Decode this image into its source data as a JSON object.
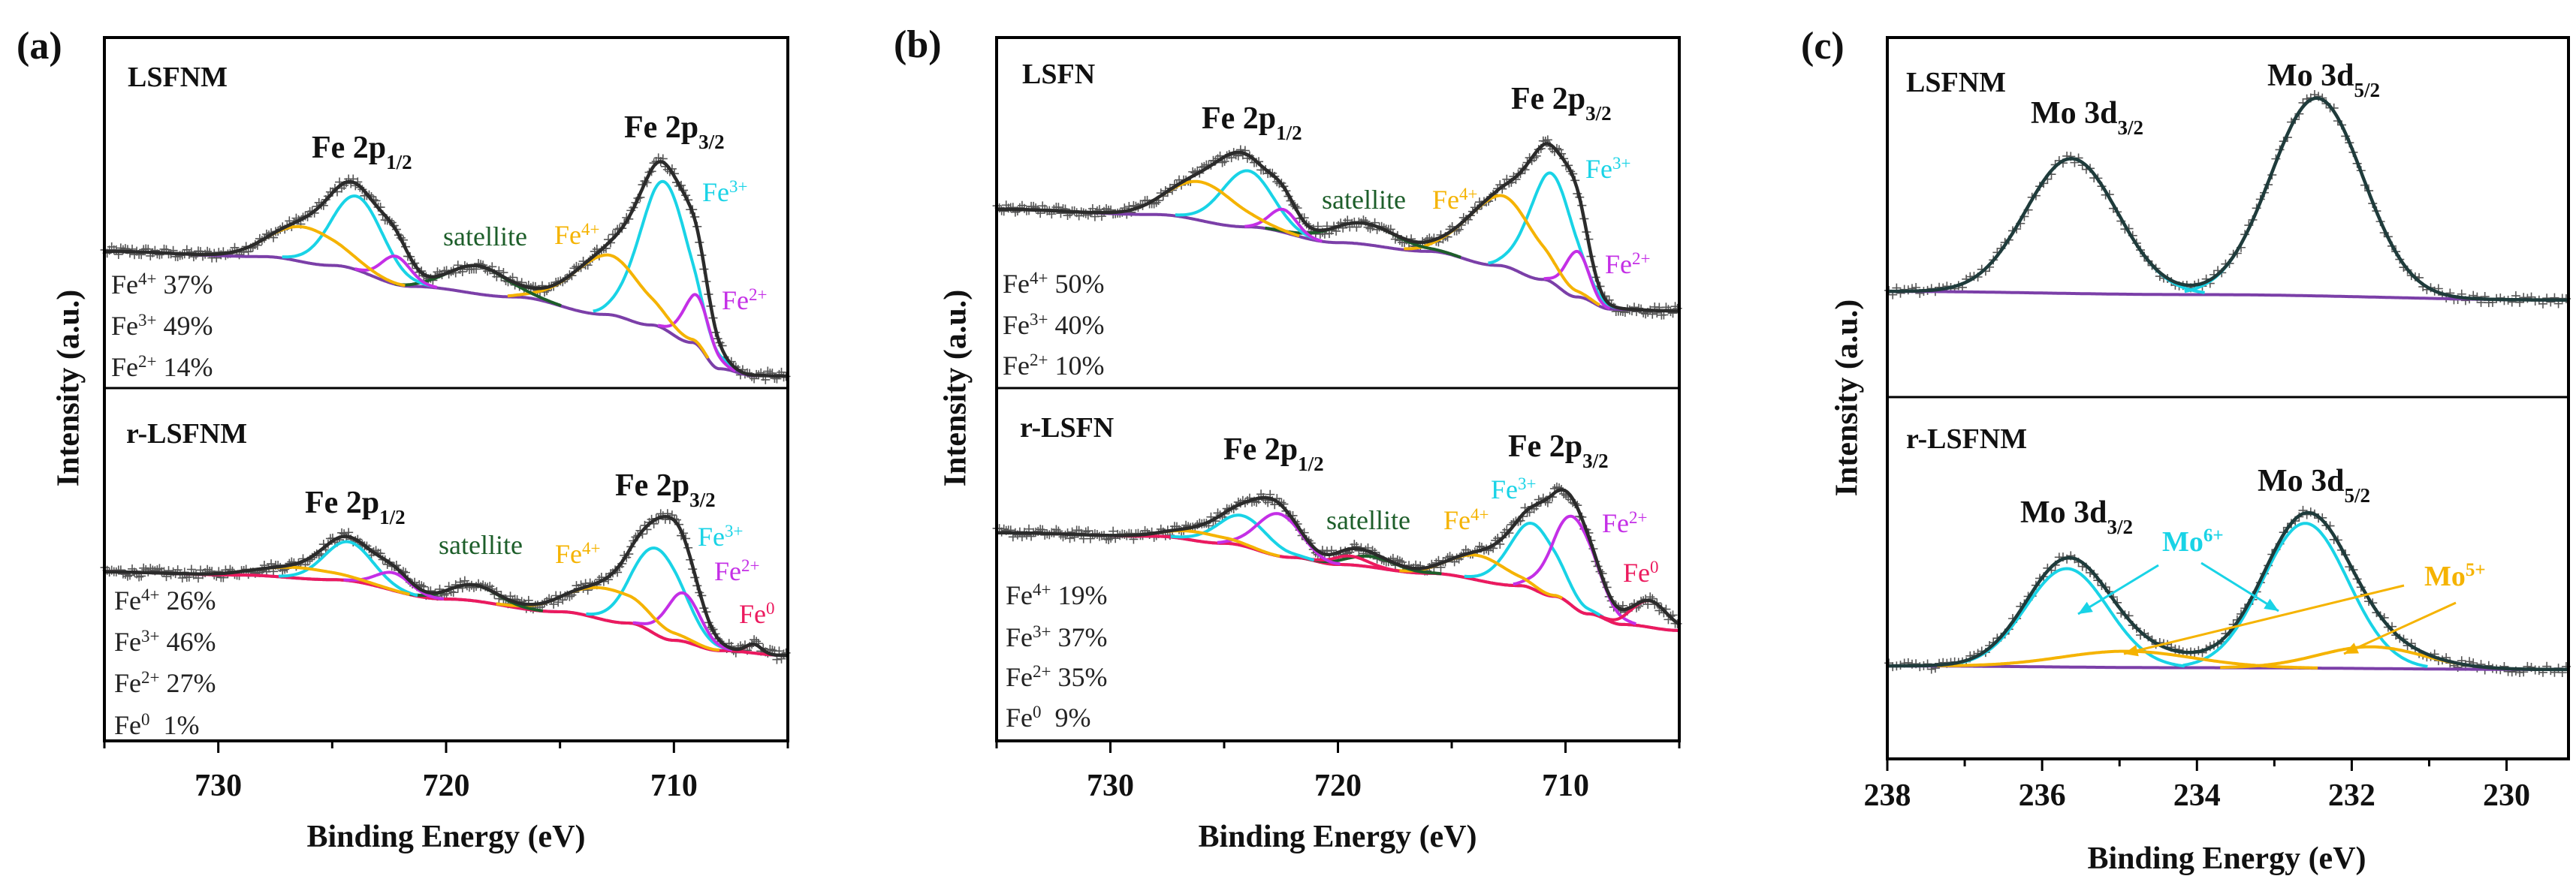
{
  "colors": {
    "fe3": "#19d3e6",
    "fe2": "#c42fe6",
    "fe4": "#f5b300",
    "sat": "#1d5e2a",
    "fe0": "#ec1a5e",
    "bg": "#7b3fa8",
    "envelope": "#2b2b2b",
    "data": "#555555",
    "mo_env": "#1f3b3b",
    "mo6": "#19d3e6",
    "mo5": "#f5b300"
  },
  "chart_data": [
    {
      "panel_label": "(a)",
      "type": "line",
      "xlabel": "Binding Energy (eV)",
      "ylabel": "Intensity (a.u.)",
      "xlim": [
        735,
        705
      ],
      "xticks": [
        730,
        720,
        710
      ],
      "minor_step": 5,
      "subplots": [
        {
          "sample": "LSFNM",
          "ylim": [
            0,
            100
          ],
          "background_color": "#7b3fa8",
          "background": [
            [
              735,
              39
            ],
            [
              728,
              37.5
            ],
            [
              725,
              35
            ],
            [
              721.5,
              29
            ],
            [
              717,
              26
            ],
            [
              713,
              21
            ],
            [
              711,
              18
            ],
            [
              709.2,
              13
            ],
            [
              708,
              5.5
            ],
            [
              706.5,
              3.6
            ],
            [
              705,
              3.4
            ]
          ],
          "components": [
            {
              "state": "Fe3+",
              "line": "2p3/2",
              "center": 710.4,
              "height": 42,
              "fwhm": 2.6,
              "color": "#19d3e6"
            },
            {
              "state": "Fe2+",
              "line": "2p3/2",
              "center": 709.0,
              "height": 14,
              "fwhm": 1.4,
              "color": "#c42fe6"
            },
            {
              "state": "Fe4+",
              "line": "2p3/2",
              "center": 712.9,
              "height": 17,
              "fwhm": 3.6,
              "color": "#f5b300"
            },
            {
              "state": "satellite",
              "line": "",
              "center": 718.6,
              "height": 8,
              "fwhm": 3.0,
              "color": "#1d5e2a"
            },
            {
              "state": "Fe3+",
              "line": "2p1/2",
              "center": 723.9,
              "height": 21,
              "fwhm": 2.7,
              "color": "#19d3e6"
            },
            {
              "state": "Fe2+",
              "line": "2p1/2",
              "center": 722.2,
              "height": 8,
              "fwhm": 1.5,
              "color": "#c42fe6"
            },
            {
              "state": "Fe4+",
              "line": "2p1/2",
              "center": 726.2,
              "height": 10,
              "fwhm": 3.6,
              "color": "#f5b300"
            }
          ],
          "peak_labels": [
            {
              "base": "Fe 2p",
              "sub": "1/2"
            },
            {
              "base": "Fe 2p",
              "sub": "3/2"
            }
          ],
          "species_labels": [
            {
              "base": "satellite",
              "sup": "",
              "color": "#1d5e2a"
            },
            {
              "base": "Fe",
              "sup": "4+",
              "color": "#f5b300"
            },
            {
              "base": "Fe",
              "sup": "3+",
              "color": "#19d3e6"
            },
            {
              "base": "Fe",
              "sup": "2+",
              "color": "#c42fe6"
            }
          ],
          "composition": [
            {
              "base": "Fe",
              "sup": "4+",
              "pct": "37%"
            },
            {
              "base": "Fe",
              "sup": "3+",
              "pct": "49%"
            },
            {
              "base": "Fe",
              "sup": "2+",
              "pct": "14%"
            }
          ]
        },
        {
          "sample": "r-LSFNM",
          "ylim": [
            0,
            100
          ],
          "background_color": "#ec1a5e",
          "background": [
            [
              735,
              47.9
            ],
            [
              729,
              47
            ],
            [
              725,
              45.7
            ],
            [
              720,
              40.2
            ],
            [
              715,
              36.6
            ],
            [
              712,
              33.4
            ],
            [
              710,
              28.5
            ],
            [
              708,
              25.6
            ],
            [
              705,
              24.2
            ]
          ],
          "components": [
            {
              "state": "Fe3+",
              "line": "2p3/2",
              "center": 710.7,
              "height": 24.5,
              "fwhm": 2.6,
              "color": "#19d3e6"
            },
            {
              "state": "Fe2+",
              "line": "2p3/2",
              "center": 709.6,
              "height": 13.7,
              "fwhm": 1.8,
              "color": "#c42fe6"
            },
            {
              "state": "Fe0",
              "line": "2p3/2",
              "center": 706.5,
              "height": 2.5,
              "fwhm": 0.8,
              "color": "#ec1a5e"
            },
            {
              "state": "Fe4+",
              "line": "2p3/2",
              "center": 712.9,
              "height": 9,
              "fwhm": 4.0,
              "color": "#f5b300"
            },
            {
              "state": "satellite",
              "line": "",
              "center": 718.8,
              "height": 4.5,
              "fwhm": 2.5,
              "color": "#1d5e2a"
            },
            {
              "state": "Fe3+",
              "line": "2p1/2",
              "center": 724.3,
              "height": 11,
              "fwhm": 2.5,
              "color": "#19d3e6"
            },
            {
              "state": "Fe2+",
              "line": "2p1/2",
              "center": 722.3,
              "height": 5,
              "fwhm": 1.8,
              "color": "#c42fe6"
            },
            {
              "state": "Fe4+",
              "line": "2p1/2",
              "center": 726.5,
              "height": 3,
              "fwhm": 4.0,
              "color": "#f5b300"
            }
          ],
          "peak_labels": [
            {
              "base": "Fe 2p",
              "sub": "1/2"
            },
            {
              "base": "Fe 2p",
              "sub": "3/2"
            }
          ],
          "species_labels": [
            {
              "base": "satellite",
              "sup": "",
              "color": "#1d5e2a"
            },
            {
              "base": "Fe",
              "sup": "4+",
              "color": "#f5b300"
            },
            {
              "base": "Fe",
              "sup": "3+",
              "color": "#19d3e6"
            },
            {
              "base": "Fe",
              "sup": "2+",
              "color": "#c42fe6"
            },
            {
              "base": "Fe",
              "sup": "0",
              "color": "#ec1a5e"
            }
          ],
          "composition": [
            {
              "base": "Fe",
              "sup": "4+",
              "pct": "26%"
            },
            {
              "base": "Fe",
              "sup": "3+",
              "pct": "46%"
            },
            {
              "base": "Fe",
              "sup": "2+",
              "pct": "27%"
            },
            {
              "base": "Fe",
              "sup": "0",
              "pct": "1%"
            }
          ]
        }
      ]
    },
    {
      "panel_label": "(b)",
      "type": "line",
      "xlabel": "Binding Energy (eV)",
      "ylabel": "Intensity (a.u.)",
      "xlim": [
        735,
        705
      ],
      "xticks": [
        730,
        720,
        710
      ],
      "minor_step": 5,
      "subplots": [
        {
          "sample": "LSFN",
          "ylim": [
            0,
            100
          ],
          "background_color": "#7b3fa8",
          "background": [
            [
              735,
              51
            ],
            [
              728,
              49.5
            ],
            [
              724,
              46
            ],
            [
              720,
              41.5
            ],
            [
              716,
              39
            ],
            [
              713,
              35
            ],
            [
              711,
              31
            ],
            [
              709.5,
              26
            ],
            [
              708,
              22.5
            ],
            [
              705,
              22
            ]
          ],
          "components": [
            {
              "state": "Fe3+",
              "line": "2p3/2",
              "center": 710.6,
              "height": 31,
              "fwhm": 2.3,
              "color": "#19d3e6"
            },
            {
              "state": "Fe2+",
              "line": "2p3/2",
              "center": 709.5,
              "height": 13,
              "fwhm": 1.2,
              "color": "#c42fe6"
            },
            {
              "state": "Fe4+",
              "line": "2p3/2",
              "center": 712.8,
              "height": 20,
              "fwhm": 3.5,
              "color": "#f5b300"
            },
            {
              "state": "satellite",
              "line": "",
              "center": 718.9,
              "height": 6,
              "fwhm": 3.5,
              "color": "#1d5e2a"
            },
            {
              "state": "Fe3+",
              "line": "2p1/2",
              "center": 724.0,
              "height": 16,
              "fwhm": 2.6,
              "color": "#19d3e6"
            },
            {
              "state": "Fe2+",
              "line": "2p1/2",
              "center": 722.4,
              "height": 6.5,
              "fwhm": 1.4,
              "color": "#c42fe6"
            },
            {
              "state": "Fe4+",
              "line": "2p1/2",
              "center": 726.0,
              "height": 11,
              "fwhm": 3.5,
              "color": "#f5b300"
            }
          ],
          "peak_labels": [
            {
              "base": "Fe 2p",
              "sub": "1/2"
            },
            {
              "base": "Fe 2p",
              "sub": "3/2"
            }
          ],
          "species_labels": [
            {
              "base": "satellite",
              "sup": "",
              "color": "#1d5e2a"
            },
            {
              "base": "Fe",
              "sup": "4+",
              "color": "#f5b300"
            },
            {
              "base": "Fe",
              "sup": "3+",
              "color": "#19d3e6"
            },
            {
              "base": "Fe",
              "sup": "2+",
              "color": "#c42fe6"
            }
          ],
          "composition": [
            {
              "base": "Fe",
              "sup": "4+",
              "pct": "50%"
            },
            {
              "base": "Fe",
              "sup": "3+",
              "pct": "40%"
            },
            {
              "base": "Fe",
              "sup": "2+",
              "pct": "10%"
            }
          ]
        },
        {
          "sample": "r-LSFN",
          "ylim": [
            0,
            100
          ],
          "background_color": "#ec1a5e",
          "background": [
            [
              735,
              59
            ],
            [
              728,
              58
            ],
            [
              725,
              56
            ],
            [
              722,
              52
            ],
            [
              720,
              50
            ],
            [
              716,
              47.5
            ],
            [
              712,
              44
            ],
            [
              710.5,
              41
            ],
            [
              709,
              36
            ],
            [
              707.5,
              33
            ],
            [
              705,
              31.3
            ]
          ],
          "components": [
            {
              "state": "Fe3+",
              "line": "2p3/2",
              "center": 711.4,
              "height": 18.5,
              "fwhm": 2.5,
              "color": "#19d3e6"
            },
            {
              "state": "Fe2+",
              "line": "2p3/2",
              "center": 709.6,
              "height": 25.5,
              "fwhm": 2.2,
              "color": "#c42fe6"
            },
            {
              "state": "Fe0",
              "line": "2p3/2",
              "center": 706.3,
              "height": 7.5,
              "fwhm": 1.8,
              "color": "#ec1a5e"
            },
            {
              "state": "Fe4+",
              "line": "2p3/2",
              "center": 713.8,
              "height": 7,
              "fwhm": 3.0,
              "color": "#f5b300"
            },
            {
              "state": "satellite",
              "line": "",
              "center": 718.5,
              "height": 3,
              "fwhm": 2.5,
              "color": "#1d5e2a"
            },
            {
              "state": "Fe0",
              "line": "2p1/2",
              "center": 719.5,
              "height": 2.5,
              "fwhm": 1.8,
              "color": "#ec1a5e"
            },
            {
              "state": "Fe3+",
              "line": "2p1/2",
              "center": 724.2,
              "height": 8.5,
              "fwhm": 2.6,
              "color": "#19d3e6"
            },
            {
              "state": "Fe2+",
              "line": "2p1/2",
              "center": 722.6,
              "height": 12,
              "fwhm": 2.2,
              "color": "#c42fe6"
            },
            {
              "state": "Fe4+",
              "line": "2p1/2",
              "center": 726.2,
              "height": 2.5,
              "fwhm": 3.0,
              "color": "#f5b300"
            }
          ],
          "peak_labels": [
            {
              "base": "Fe 2p",
              "sub": "1/2"
            },
            {
              "base": "Fe 2p",
              "sub": "3/2"
            }
          ],
          "species_labels": [
            {
              "base": "satellite",
              "sup": "",
              "color": "#1d5e2a"
            },
            {
              "base": "Fe",
              "sup": "4+",
              "color": "#f5b300"
            },
            {
              "base": "Fe",
              "sup": "3+",
              "color": "#19d3e6"
            },
            {
              "base": "Fe",
              "sup": "2+",
              "color": "#c42fe6"
            },
            {
              "base": "Fe",
              "sup": "0",
              "color": "#ec1a5e"
            }
          ],
          "composition": [
            {
              "base": "Fe",
              "sup": "4+",
              "pct": "19%"
            },
            {
              "base": "Fe",
              "sup": "3+",
              "pct": "37%"
            },
            {
              "base": "Fe",
              "sup": "2+",
              "pct": "35%"
            },
            {
              "base": "Fe",
              "sup": "0",
              "pct": "9%"
            }
          ]
        }
      ]
    },
    {
      "panel_label": "(c)",
      "type": "line",
      "xlabel": "Binding Energy (eV)",
      "ylabel": "Intensity (a.u.)",
      "xlim": [
        238,
        229.2
      ],
      "xticks": [
        238,
        236,
        234,
        232,
        230
      ],
      "minor_step": 1,
      "subplots": [
        {
          "sample": "LSFNM",
          "ylim": [
            0,
            100
          ],
          "background_color": "#7b3fa8",
          "background": [
            [
              238,
              29.4
            ],
            [
              234,
              28.5
            ],
            [
              229.2,
              27
            ]
          ],
          "components": [
            {
              "state": "Mo",
              "line": "3d3/2",
              "center": 235.62,
              "height": 37.5,
              "fwhm": 1.4,
              "color": "#19d3e6"
            },
            {
              "state": "Mo",
              "line": "3d5/2",
              "center": 232.45,
              "height": 55,
              "fwhm": 1.4,
              "color": "#19d3e6"
            }
          ],
          "peak_labels": [
            {
              "base": "Mo 3d",
              "sub": "3/2"
            },
            {
              "base": "Mo 3d",
              "sub": "5/2"
            }
          ],
          "species_labels": [],
          "composition": []
        },
        {
          "sample": "r-LSFNM",
          "ylim": [
            0,
            100
          ],
          "background_color": "#7b3fa8",
          "background": [
            [
              238,
              25.7
            ],
            [
              234,
              25.2
            ],
            [
              229.2,
              24.7
            ]
          ],
          "components": [
            {
              "state": "Mo6+",
              "line": "3d3/2",
              "center": 235.68,
              "height": 27.2,
              "fwhm": 1.25,
              "color": "#19d3e6"
            },
            {
              "state": "Mo6+",
              "line": "3d5/2",
              "center": 232.6,
              "height": 40,
              "fwhm": 1.3,
              "color": "#19d3e6"
            },
            {
              "state": "Mo5+",
              "line": "3d3/2",
              "center": 234.9,
              "height": 4.5,
              "fwhm": 2.0,
              "color": "#f5b300"
            },
            {
              "state": "Mo5+",
              "line": "3d5/2",
              "center": 231.75,
              "height": 6,
              "fwhm": 1.6,
              "color": "#f5b300"
            }
          ],
          "peak_labels": [
            {
              "base": "Mo 3d",
              "sub": "3/2"
            },
            {
              "base": "Mo 3d",
              "sub": "5/2"
            }
          ],
          "species_labels": [
            {
              "base": "Mo",
              "sup": "6+",
              "color": "#19d3e6"
            },
            {
              "base": "Mo",
              "sup": "5+",
              "color": "#f5b300"
            }
          ],
          "composition": []
        }
      ]
    }
  ]
}
